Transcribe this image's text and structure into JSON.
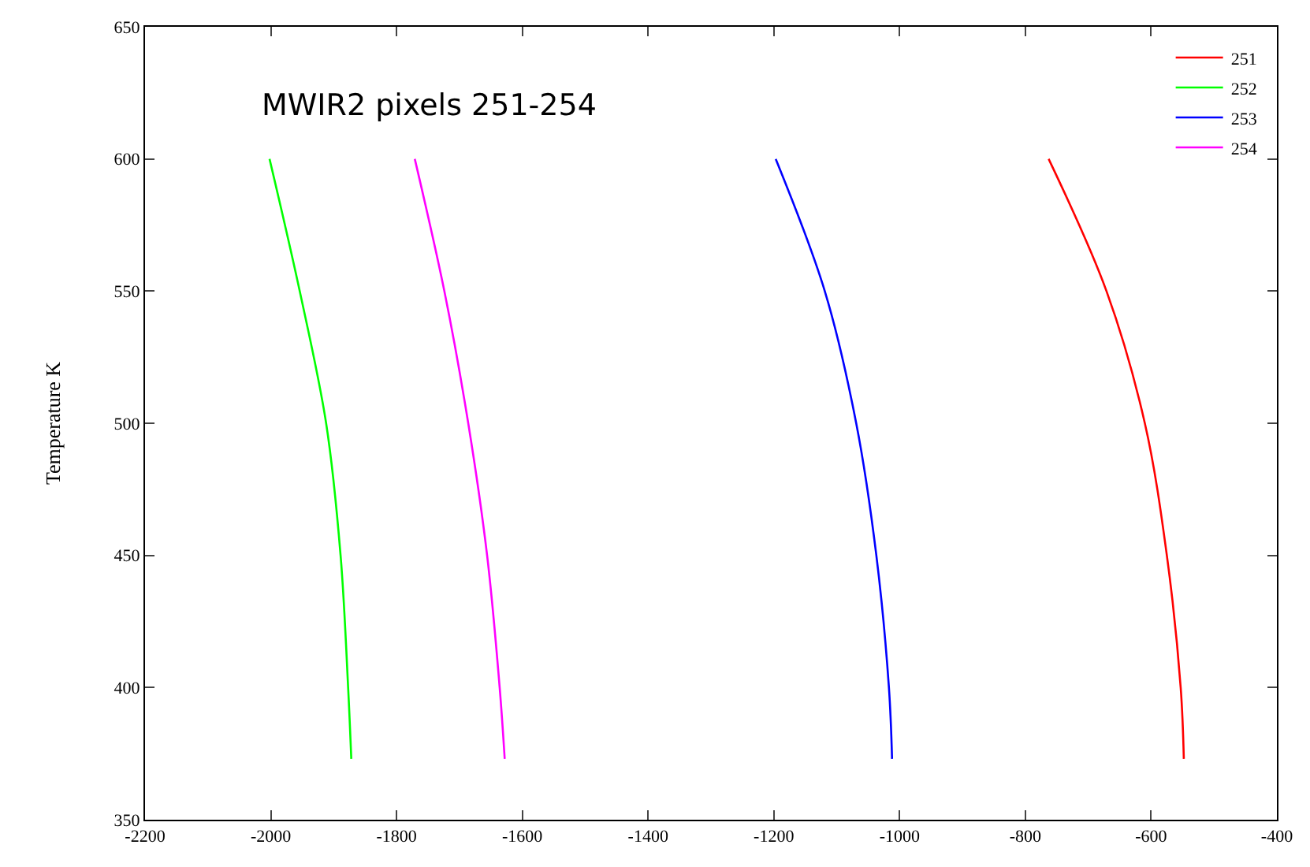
{
  "chart_data": {
    "type": "line",
    "title": "MWIR2 pixels 251-254",
    "ylabel": "Temperature K",
    "xlim": [
      -2200,
      -400
    ],
    "xticks": [
      -2200,
      -2000,
      -1800,
      -1600,
      -1400,
      -1200,
      -1000,
      -800,
      -600,
      -400
    ],
    "ylim": [
      350,
      650
    ],
    "yticks": [
      350,
      400,
      450,
      500,
      550,
      600,
      650
    ],
    "grid": false,
    "legend": "top right",
    "marker": "none",
    "line_style": "solid",
    "series": [
      {
        "name": "251",
        "color": "#ff0000",
        "x": [
          -763,
          -671,
          -610,
          -575,
          -553,
          -548
        ],
        "values": [
          600,
          550,
          500,
          450,
          400,
          373
        ]
      },
      {
        "name": "252",
        "color": "#00ff00",
        "x": [
          -2002,
          -1954,
          -1912,
          -1889,
          -1877,
          -1872
        ],
        "values": [
          600,
          550,
          500,
          450,
          400,
          373
        ]
      },
      {
        "name": "253",
        "color": "#0000ff",
        "x": [
          -1197,
          -1119,
          -1069,
          -1037,
          -1017,
          -1012
        ],
        "values": [
          600,
          550,
          500,
          450,
          400,
          373
        ]
      },
      {
        "name": "254",
        "color": "#ff00ff",
        "x": [
          -1771,
          -1724,
          -1686,
          -1656,
          -1636,
          -1628
        ],
        "values": [
          600,
          550,
          500,
          450,
          400,
          373
        ]
      }
    ]
  }
}
